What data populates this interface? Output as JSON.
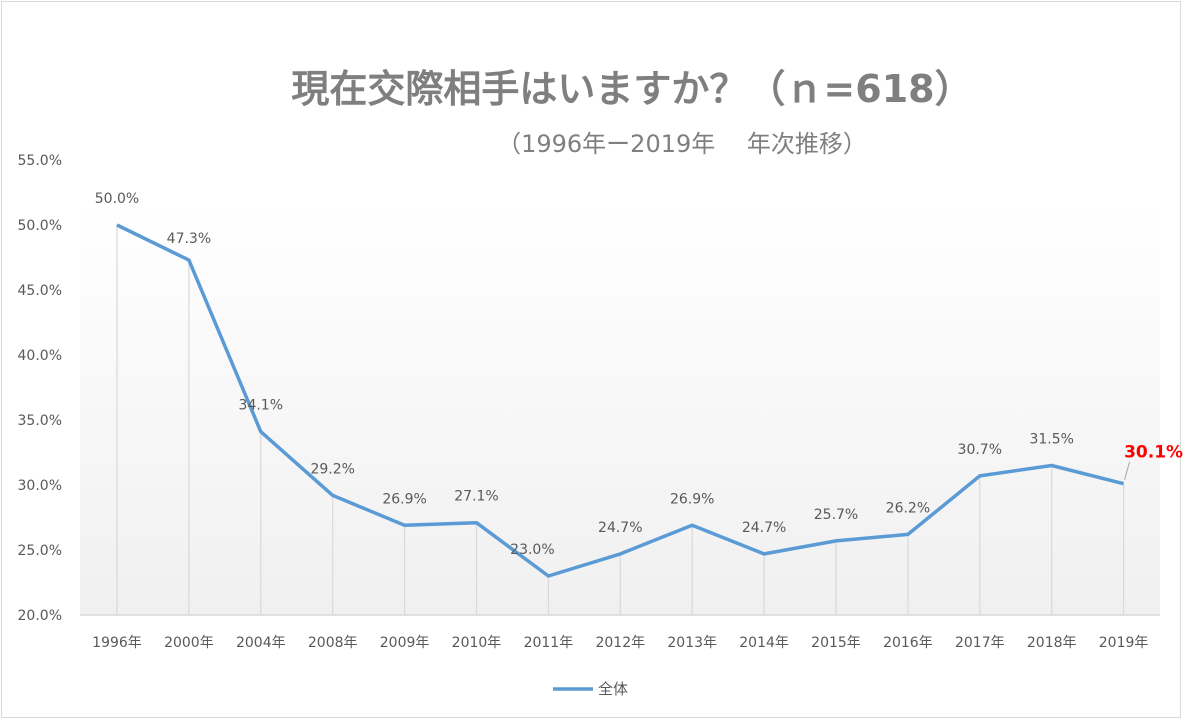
{
  "chart_data": {
    "type": "line",
    "title": "現在交際相手はいますか？（ｎ=618）",
    "subtitle": "（1996年ー2019年　 年次推移）",
    "categories": [
      "1996年",
      "2000年",
      "2004年",
      "2008年",
      "2009年",
      "2010年",
      "2011年",
      "2012年",
      "2013年",
      "2014年",
      "2015年",
      "2016年",
      "2017年",
      "2018年",
      "2019年"
    ],
    "series": [
      {
        "name": "全体",
        "values": [
          50.0,
          47.3,
          34.1,
          29.2,
          26.9,
          27.1,
          23.0,
          24.7,
          26.9,
          24.7,
          25.7,
          26.2,
          30.7,
          31.5,
          30.1
        ],
        "color": "#5b9bd5"
      }
    ],
    "data_labels": [
      "50.0%",
      "47.3%",
      "34.1%",
      "29.2%",
      "26.9%",
      "27.1%",
      "23.0%",
      "24.7%",
      "26.9%",
      "24.7%",
      "25.7%",
      "26.2%",
      "30.7%",
      "31.5%",
      "30.1%"
    ],
    "highlight_label_color": "#ff0000",
    "ylim": [
      20,
      55
    ],
    "yticks": [
      "20.0%",
      "25.0%",
      "30.0%",
      "35.0%",
      "40.0%",
      "45.0%",
      "50.0%",
      "55.0%"
    ],
    "drop_lines": true,
    "grid": false,
    "legend": "bottom"
  }
}
